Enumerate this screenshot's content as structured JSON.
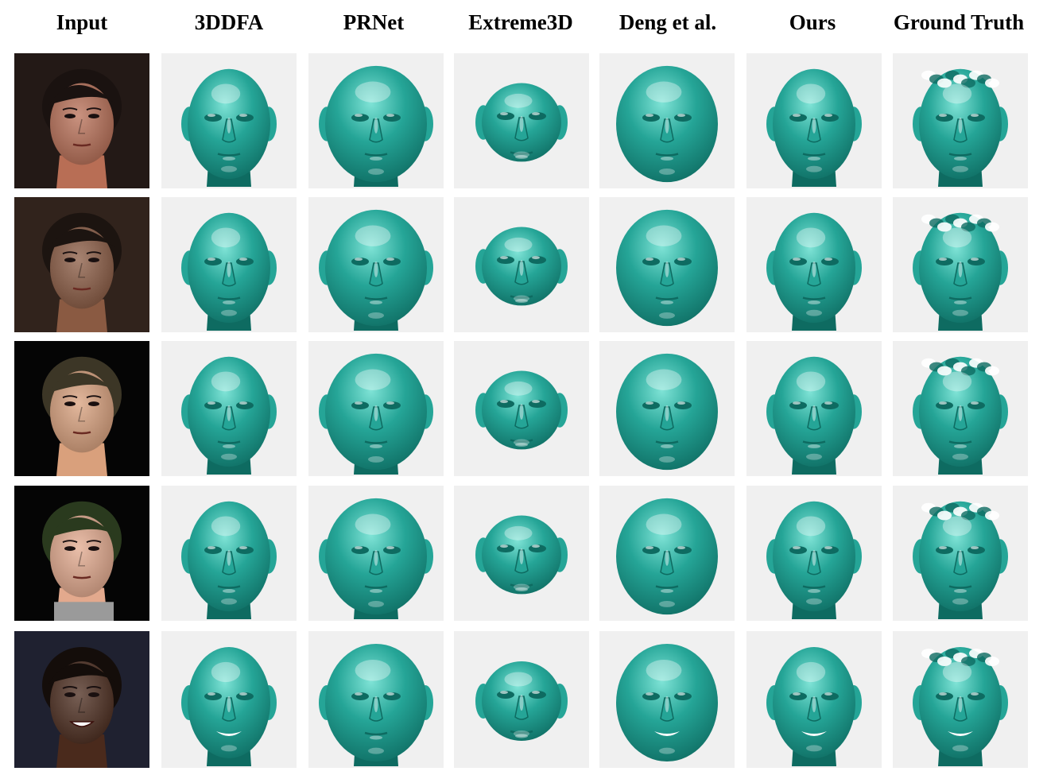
{
  "figure": {
    "headers": [
      "Input",
      "3DDFA",
      "PRNet",
      "Extreme3D",
      "Deng et al.",
      "Ours",
      "Ground Truth"
    ],
    "row_count": 5,
    "colors": {
      "mesh_main": "#25a597",
      "mesh_dark": "#0e6b61",
      "mesh_light": "#7fe3d6",
      "panel_bg": "#f0f0f0",
      "photo_bg": [
        "#2a1e1a",
        "#3a2a22",
        "#050505",
        "#050505",
        "#1f2130"
      ],
      "skin": [
        "#b86e55",
        "#8a5a42",
        "#d9a07c",
        "#e3a98d",
        "#4a2a1c"
      ],
      "hair": [
        "#1a1210",
        "#1c1410",
        "#3c3626",
        "#2a3a1e",
        "#140d0a"
      ]
    }
  }
}
